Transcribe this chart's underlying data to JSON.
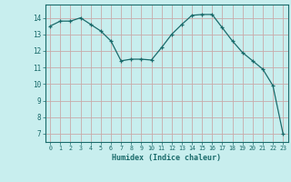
{
  "x": [
    0,
    1,
    2,
    3,
    4,
    5,
    6,
    7,
    8,
    9,
    10,
    11,
    12,
    13,
    14,
    15,
    16,
    17,
    18,
    19,
    20,
    21,
    22,
    23
  ],
  "y": [
    13.5,
    13.8,
    13.8,
    14.0,
    13.6,
    13.2,
    12.6,
    11.4,
    11.5,
    11.5,
    11.45,
    12.2,
    13.0,
    13.6,
    14.15,
    14.2,
    14.2,
    13.4,
    12.6,
    11.9,
    11.4,
    10.9,
    9.9,
    7.0
  ],
  "xlabel": "Humidex (Indice chaleur)",
  "ylim": [
    6.5,
    14.8
  ],
  "xlim": [
    -0.5,
    23.5
  ],
  "bg_color": "#c8eeee",
  "line_color": "#1a6b6b",
  "grid_color": "#c8aaaa",
  "tick_label_color": "#1a6b6b",
  "xlabel_color": "#1a6b6b",
  "yticks": [
    7,
    8,
    9,
    10,
    11,
    12,
    13,
    14
  ],
  "xticks": [
    0,
    1,
    2,
    3,
    4,
    5,
    6,
    7,
    8,
    9,
    10,
    11,
    12,
    13,
    14,
    15,
    16,
    17,
    18,
    19,
    20,
    21,
    22,
    23
  ]
}
